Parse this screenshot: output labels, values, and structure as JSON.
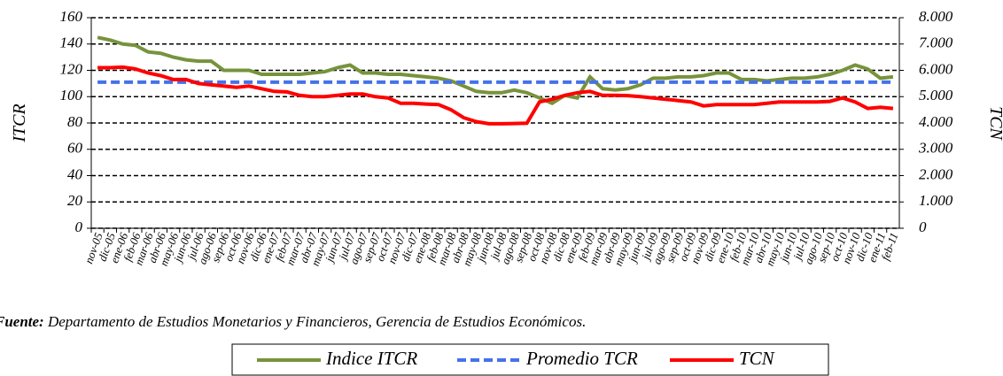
{
  "chart_data": {
    "type": "line",
    "categories": [
      "nov-05",
      "dic-05",
      "ene-06",
      "feb-06",
      "mar-06",
      "abr-06",
      "may-06",
      "jun-06",
      "jul-06",
      "ago-06",
      "sep-06",
      "oct-06",
      "nov-06",
      "dic-06",
      "ene-07",
      "feb-07",
      "mar-07",
      "abr-07",
      "may-07",
      "jun-07",
      "jul-07",
      "ago-07",
      "sep-07",
      "oct-07",
      "nov-07",
      "dic-07",
      "ene-08",
      "feb-08",
      "mar-08",
      "abr-08",
      "may-08",
      "jun-08",
      "jul-08",
      "ago-08",
      "sep-08",
      "oct-08",
      "nov-08",
      "dic-08",
      "ene-09",
      "feb-09",
      "mar-09",
      "abr-09",
      "may-09",
      "jun-09",
      "jul-09",
      "ago-09",
      "sep-09",
      "oct-09",
      "nov-09",
      "dic-09",
      "ene-10",
      "feb-10",
      "mar-10",
      "abr-10",
      "may-10",
      "jun-10",
      "jul-10",
      "ago-10",
      "sep-10",
      "oct-10",
      "nov-10",
      "dic-10",
      "ene-11",
      "feb-11"
    ],
    "series": [
      {
        "name": "Indice ITCR",
        "color": "#77933c",
        "dash": false,
        "values": [
          145,
          143,
          140,
          139,
          134,
          133,
          130,
          128,
          127,
          127,
          120,
          120,
          120,
          117,
          117,
          117,
          117,
          118,
          119,
          122,
          124,
          118,
          118,
          117,
          117,
          116,
          115,
          114,
          112,
          108,
          104,
          103,
          103,
          105,
          103,
          99,
          95,
          101,
          99,
          115,
          106,
          105,
          106,
          109,
          114,
          114,
          115,
          115,
          116,
          118,
          118,
          113,
          113,
          112,
          113,
          114,
          114,
          115,
          117,
          120,
          124,
          121,
          114,
          115
        ]
      },
      {
        "name": "Promedio TCR",
        "color": "#4472e8",
        "dash": true,
        "values": [
          111,
          111,
          111,
          111,
          111,
          111,
          111,
          111,
          111,
          111,
          111,
          111,
          111,
          111,
          111,
          111,
          111,
          111,
          111,
          111,
          111,
          111,
          111,
          111,
          111,
          111,
          111,
          111,
          111,
          111,
          111,
          111,
          111,
          111,
          111,
          111,
          111,
          111,
          111,
          111,
          111,
          111,
          111,
          111,
          111,
          111,
          111,
          111,
          111,
          111,
          111,
          111,
          111,
          111,
          111,
          111,
          111,
          111,
          111,
          111,
          111,
          111,
          111,
          111
        ]
      },
      {
        "name": "TCN",
        "color": "#ff0000",
        "dash": false,
        "axis": "y2",
        "values": [
          6100,
          6100,
          6120,
          6050,
          5900,
          5800,
          5650,
          5650,
          5500,
          5450,
          5400,
          5350,
          5400,
          5300,
          5200,
          5180,
          5050,
          5000,
          5000,
          5050,
          5100,
          5100,
          5000,
          4950,
          4750,
          4750,
          4720,
          4700,
          4500,
          4200,
          4050,
          3970,
          3970,
          3980,
          3990,
          4800,
          4900,
          5050,
          5150,
          5200,
          5050,
          5050,
          5040,
          5000,
          4950,
          4900,
          4850,
          4800,
          4650,
          4700,
          4700,
          4700,
          4700,
          4750,
          4800,
          4800,
          4800,
          4800,
          4820,
          4950,
          4800,
          4550,
          4600,
          4550
        ]
      }
    ],
    "ylabel": "ITCR",
    "y2label": "TCN",
    "ylim": [
      0,
      160
    ],
    "yticks": [
      0,
      20,
      40,
      60,
      80,
      100,
      120,
      140,
      160
    ],
    "y2lim": [
      0,
      8000
    ],
    "y2ticks": [
      0,
      {
        "value": 1000,
        "label": "1.000"
      },
      {
        "value": 2000,
        "label": "2.000"
      },
      {
        "value": 3000,
        "label": "3.000"
      },
      {
        "value": 4000,
        "label": "4.000"
      },
      {
        "value": 5000,
        "label": "5.000"
      },
      {
        "value": 6000,
        "label": "6.000"
      },
      {
        "value": 7000,
        "label": "7.000"
      },
      {
        "value": 8000,
        "label": "8.000"
      }
    ],
    "grid": true,
    "legend": "bottom",
    "note_label": "Fuente:",
    "note_text": "Departamento de Estudios Monetarios y Financieros, Gerencia de Estudios Económicos."
  }
}
